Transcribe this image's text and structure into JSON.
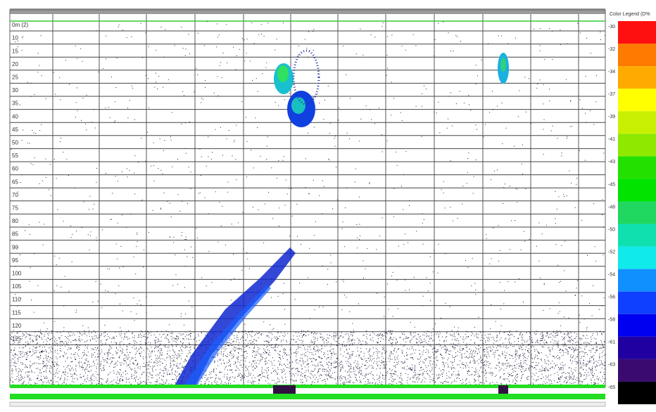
{
  "echogram": {
    "depth_labels": [
      "0m (2)",
      "10",
      "15",
      "20",
      "25",
      "30",
      "35",
      "40",
      "45",
      "50",
      "55",
      "60",
      "65",
      "70",
      "75",
      "80",
      "85",
      "90",
      "95",
      "100",
      "105",
      "110",
      "115",
      "120",
      "125"
    ]
  },
  "legend": {
    "title": "Color Legend (D%",
    "labels": [
      "-30",
      "-32",
      "-34",
      "-37",
      "-39",
      "-41",
      "-43",
      "-45",
      "-48",
      "-50",
      "-52",
      "-54",
      "-56",
      "-58",
      "-61",
      "-63",
      "-65"
    ],
    "colors": [
      "#ff1010",
      "#ff7a00",
      "#ffaa00",
      "#ffff00",
      "#c8f000",
      "#8ee800",
      "#22e000",
      "#00e400",
      "#20d860",
      "#10e0b0",
      "#10eaea",
      "#1090ff",
      "#1040ff",
      "#0000f0",
      "#2000a0",
      "#3a0a70",
      "#000000"
    ]
  }
}
